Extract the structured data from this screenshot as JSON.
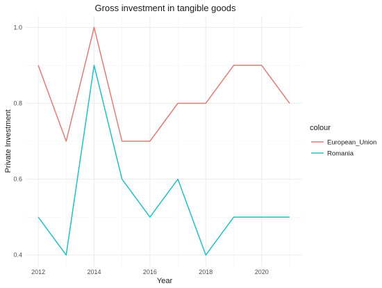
{
  "chart_data": {
    "type": "line",
    "title": "Gross investment in tangible goods",
    "xlabel": "Year",
    "ylabel": "Private Investment",
    "x": [
      2012,
      2013,
      2014,
      2015,
      2016,
      2017,
      2018,
      2019,
      2020,
      2021
    ],
    "series": [
      {
        "name": "European_Union",
        "color": "#E07B74",
        "values": [
          0.9,
          0.7,
          1.0,
          0.7,
          0.7,
          0.8,
          0.8,
          0.9,
          0.9,
          0.8
        ]
      },
      {
        "name": "Romania",
        "color": "#1FBFC4",
        "values": [
          0.5,
          0.4,
          0.9,
          0.6,
          0.5,
          0.6,
          0.4,
          0.5,
          0.5,
          0.5
        ]
      }
    ],
    "xticks": [
      2012,
      2014,
      2016,
      2018,
      2020
    ],
    "yticks": [
      "0.4",
      "0.6",
      "0.8",
      "1.0"
    ],
    "xlim": [
      2011.55,
      2021.45
    ],
    "ylim": [
      0.37,
      1.03
    ],
    "grid": true,
    "legend_title": "colour",
    "legend_position": "right"
  }
}
